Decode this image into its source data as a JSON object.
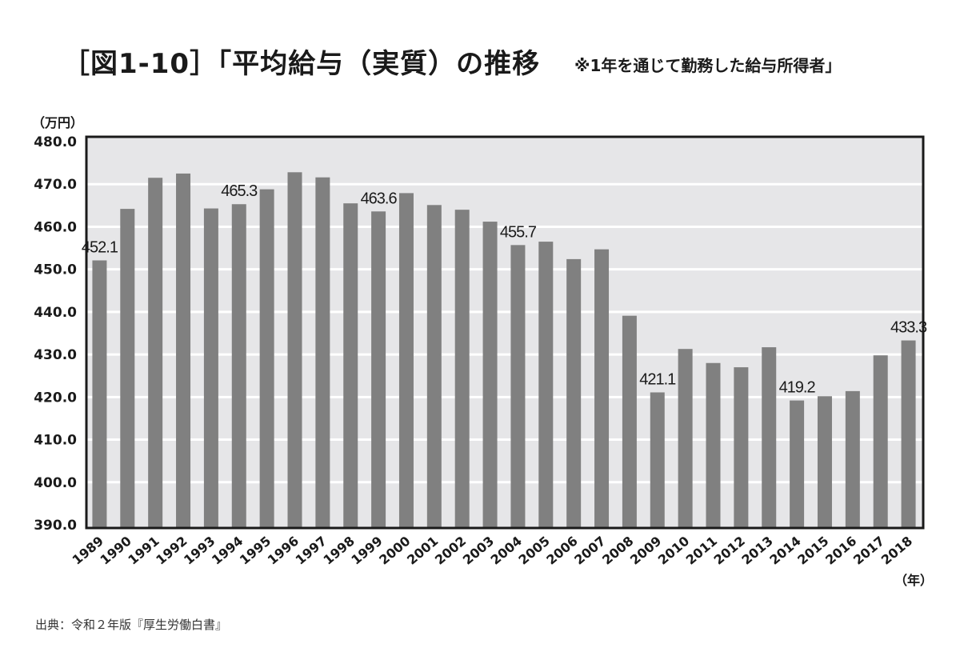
{
  "header": {
    "title": "［図1-10］「平均給与（実質）の推移",
    "subtitle": "※1年を通じて勤務した給与所得者」"
  },
  "footer": {
    "source": "出典：令和２年版『厚生労働白書』"
  },
  "colors": {
    "plot_background": "#e6e6e8",
    "bar": "#808080",
    "gridline": "#ffffff",
    "frame": "#1a1a1a"
  },
  "chart_data": {
    "type": "bar",
    "title": "［図1-10］「平均給与（実質）の推移 ※1年を通じて勤務した給与所得者」",
    "xlabel": "（年）",
    "ylabel": "（万円）",
    "ylim": [
      390.0,
      480.0
    ],
    "yticks": [
      "480.0",
      "470.0",
      "460.0",
      "450.0",
      "440.0",
      "430.0",
      "420.0",
      "410.0",
      "400.0",
      "390.0"
    ],
    "grid": true,
    "legend": null,
    "categories": [
      "1989",
      "1990",
      "1991",
      "1992",
      "1993",
      "1994",
      "1995",
      "1996",
      "1997",
      "1998",
      "1999",
      "2000",
      "2001",
      "2002",
      "2003",
      "2004",
      "2005",
      "2006",
      "2007",
      "2008",
      "2009",
      "2010",
      "2011",
      "2012",
      "2013",
      "2014",
      "2015",
      "2016",
      "2017",
      "2018"
    ],
    "values": [
      452.1,
      464.2,
      471.5,
      472.5,
      464.3,
      465.3,
      468.8,
      472.8,
      471.6,
      465.5,
      463.6,
      467.9,
      465.1,
      464.0,
      461.2,
      455.7,
      456.5,
      452.4,
      454.7,
      439.1,
      421.1,
      431.3,
      428.0,
      427.0,
      431.7,
      419.2,
      420.2,
      421.4,
      429.8,
      433.3
    ],
    "annotations": [
      {
        "category": "1989",
        "label": "452.1"
      },
      {
        "category": "1994",
        "label": "465.3"
      },
      {
        "category": "1999",
        "label": "463.6"
      },
      {
        "category": "2004",
        "label": "455.7"
      },
      {
        "category": "2009",
        "label": "421.1"
      },
      {
        "category": "2014",
        "label": "419.2"
      },
      {
        "category": "2018",
        "label": "433.3"
      }
    ]
  }
}
